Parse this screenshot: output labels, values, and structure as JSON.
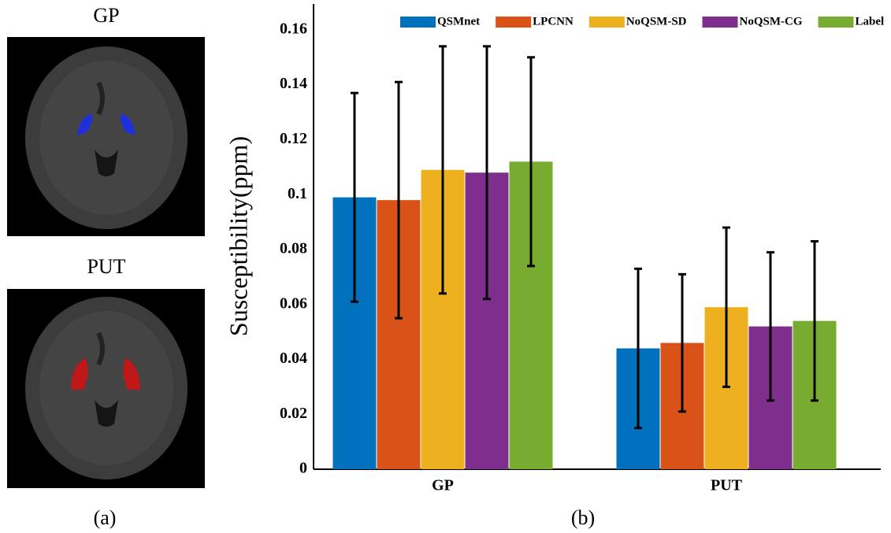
{
  "figure": {
    "image_labels": [
      "GP",
      "PUT"
    ],
    "captions": [
      "(a)",
      "(b)"
    ]
  },
  "chart_data": {
    "type": "bar",
    "ylabel": "Susceptibility(ppm)",
    "categories": [
      "GP",
      "PUT"
    ],
    "series": [
      {
        "name": "QSMnet",
        "color": "#0072bd",
        "values": [
          0.099,
          0.044
        ],
        "errors": [
          0.038,
          0.029
        ]
      },
      {
        "name": "LPCNN",
        "color": "#d95319",
        "values": [
          0.098,
          0.046
        ],
        "errors": [
          0.043,
          0.025
        ]
      },
      {
        "name": "NoQSM-SD",
        "color": "#edb120",
        "values": [
          0.109,
          0.059
        ],
        "errors": [
          0.045,
          0.029
        ]
      },
      {
        "name": "NoQSM-CG",
        "color": "#7e2f8e",
        "values": [
          0.108,
          0.052
        ],
        "errors": [
          0.046,
          0.027
        ]
      },
      {
        "name": "Label",
        "color": "#77ac30",
        "values": [
          0.112,
          0.054
        ],
        "errors": [
          0.038,
          0.029
        ]
      }
    ],
    "ylim": [
      0,
      0.17
    ],
    "yticks": [
      0,
      0.02,
      0.04,
      0.06,
      0.08,
      0.1,
      0.12,
      0.14,
      0.16
    ],
    "grid": false,
    "legend": "top"
  }
}
